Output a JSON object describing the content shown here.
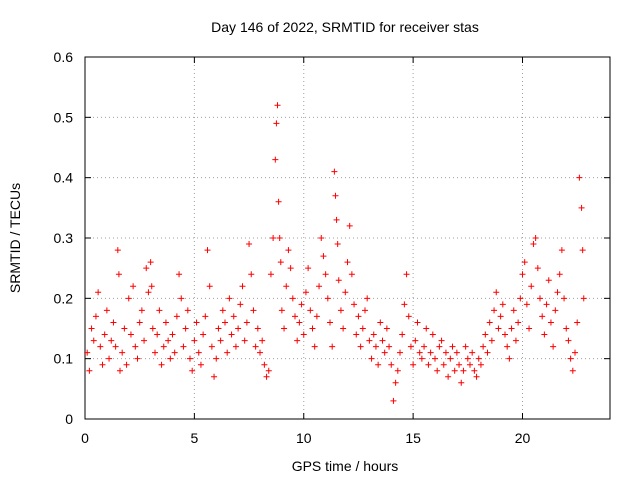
{
  "chart_data": {
    "type": "scatter",
    "title": "Day 146 of 2022, SRMTID for receiver stas",
    "xlabel": "GPS time / hours",
    "ylabel": "SRMTID / TECUs",
    "xlim": [
      0,
      24
    ],
    "ylim": [
      0,
      0.6
    ],
    "xticks": [
      0,
      5,
      10,
      15,
      20
    ],
    "xtick_labels": [
      "0",
      "5",
      "10",
      "15",
      "20"
    ],
    "yticks": [
      0,
      0.1,
      0.2,
      0.3,
      0.4,
      0.5,
      0.6
    ],
    "ytick_labels": [
      "0",
      "0.1",
      "0.2",
      "0.3",
      "0.4",
      "0.5",
      "0.6"
    ],
    "grid": true,
    "marker": "plus",
    "color": "#ff0000",
    "series": [
      {
        "name": "SRMTID",
        "x": [
          0.1,
          0.2,
          0.3,
          0.4,
          0.5,
          0.6,
          0.7,
          0.8,
          0.9,
          1.0,
          1.1,
          1.2,
          1.3,
          1.4,
          1.5,
          1.55,
          1.6,
          1.7,
          1.8,
          1.9,
          2.0,
          2.1,
          2.2,
          2.3,
          2.4,
          2.5,
          2.6,
          2.7,
          2.8,
          2.9,
          3.0,
          3.05,
          3.1,
          3.2,
          3.3,
          3.4,
          3.5,
          3.6,
          3.7,
          3.8,
          3.9,
          4.0,
          4.1,
          4.2,
          4.3,
          4.4,
          4.5,
          4.6,
          4.7,
          4.8,
          4.9,
          5.0,
          5.1,
          5.2,
          5.3,
          5.4,
          5.5,
          5.6,
          5.7,
          5.8,
          5.9,
          6.0,
          6.1,
          6.2,
          6.3,
          6.4,
          6.5,
          6.6,
          6.7,
          6.8,
          6.9,
          7.0,
          7.1,
          7.2,
          7.3,
          7.4,
          7.5,
          7.6,
          7.7,
          7.8,
          7.9,
          8.0,
          8.1,
          8.2,
          8.3,
          8.4,
          8.5,
          8.6,
          8.7,
          8.75,
          8.8,
          8.85,
          8.9,
          8.95,
          9.0,
          9.1,
          9.2,
          9.3,
          9.4,
          9.5,
          9.6,
          9.7,
          9.8,
          9.9,
          10.0,
          10.1,
          10.2,
          10.3,
          10.4,
          10.5,
          10.6,
          10.7,
          10.8,
          10.9,
          11.0,
          11.1,
          11.2,
          11.3,
          11.4,
          11.45,
          11.5,
          11.55,
          11.6,
          11.7,
          11.8,
          11.9,
          12.0,
          12.1,
          12.2,
          12.3,
          12.4,
          12.5,
          12.6,
          12.7,
          12.8,
          12.9,
          13.0,
          13.1,
          13.2,
          13.3,
          13.4,
          13.5,
          13.6,
          13.7,
          13.8,
          13.9,
          14.0,
          14.1,
          14.2,
          14.3,
          14.4,
          14.5,
          14.6,
          14.7,
          14.8,
          14.9,
          15.0,
          15.1,
          15.2,
          15.3,
          15.4,
          15.5,
          15.6,
          15.7,
          15.8,
          15.9,
          16.0,
          16.1,
          16.2,
          16.3,
          16.4,
          16.5,
          16.6,
          16.7,
          16.8,
          16.9,
          17.0,
          17.1,
          17.2,
          17.3,
          17.4,
          17.5,
          17.6,
          17.7,
          17.8,
          17.9,
          18.0,
          18.1,
          18.2,
          18.3,
          18.4,
          18.5,
          18.6,
          18.7,
          18.8,
          18.9,
          19.0,
          19.1,
          19.2,
          19.3,
          19.4,
          19.5,
          19.6,
          19.7,
          19.8,
          19.9,
          20.0,
          20.1,
          20.2,
          20.3,
          20.4,
          20.5,
          20.6,
          20.7,
          20.8,
          20.9,
          21.0,
          21.1,
          21.2,
          21.3,
          21.4,
          21.5,
          21.6,
          21.7,
          21.8,
          21.9,
          22.0,
          22.1,
          22.2,
          22.3,
          22.4,
          22.5,
          22.6,
          22.7,
          22.75,
          22.8
        ],
        "y": [
          0.11,
          0.08,
          0.15,
          0.13,
          0.17,
          0.21,
          0.12,
          0.09,
          0.14,
          0.18,
          0.1,
          0.13,
          0.16,
          0.12,
          0.28,
          0.24,
          0.08,
          0.11,
          0.15,
          0.09,
          0.2,
          0.14,
          0.22,
          0.12,
          0.1,
          0.16,
          0.18,
          0.13,
          0.25,
          0.21,
          0.26,
          0.22,
          0.15,
          0.11,
          0.14,
          0.18,
          0.09,
          0.12,
          0.16,
          0.13,
          0.1,
          0.14,
          0.11,
          0.17,
          0.24,
          0.2,
          0.12,
          0.15,
          0.18,
          0.1,
          0.08,
          0.13,
          0.16,
          0.11,
          0.09,
          0.14,
          0.17,
          0.28,
          0.22,
          0.12,
          0.07,
          0.1,
          0.15,
          0.13,
          0.18,
          0.16,
          0.11,
          0.2,
          0.14,
          0.17,
          0.12,
          0.15,
          0.19,
          0.22,
          0.13,
          0.16,
          0.29,
          0.24,
          0.18,
          0.12,
          0.15,
          0.11,
          0.13,
          0.09,
          0.07,
          0.08,
          0.24,
          0.3,
          0.43,
          0.49,
          0.52,
          0.36,
          0.3,
          0.26,
          0.18,
          0.15,
          0.22,
          0.28,
          0.25,
          0.2,
          0.17,
          0.13,
          0.16,
          0.19,
          0.14,
          0.21,
          0.25,
          0.18,
          0.15,
          0.12,
          0.17,
          0.22,
          0.3,
          0.27,
          0.24,
          0.2,
          0.16,
          0.12,
          0.41,
          0.37,
          0.33,
          0.29,
          0.23,
          0.18,
          0.15,
          0.21,
          0.26,
          0.32,
          0.24,
          0.19,
          0.14,
          0.17,
          0.12,
          0.15,
          0.18,
          0.2,
          0.13,
          0.1,
          0.14,
          0.12,
          0.09,
          0.16,
          0.13,
          0.11,
          0.15,
          0.12,
          0.09,
          0.03,
          0.06,
          0.08,
          0.11,
          0.14,
          0.19,
          0.24,
          0.17,
          0.12,
          0.09,
          0.13,
          0.16,
          0.11,
          0.1,
          0.12,
          0.15,
          0.09,
          0.11,
          0.14,
          0.1,
          0.08,
          0.12,
          0.13,
          0.09,
          0.11,
          0.07,
          0.1,
          0.12,
          0.08,
          0.11,
          0.09,
          0.06,
          0.08,
          0.12,
          0.1,
          0.09,
          0.11,
          0.08,
          0.07,
          0.1,
          0.09,
          0.12,
          0.14,
          0.11,
          0.16,
          0.13,
          0.18,
          0.21,
          0.15,
          0.17,
          0.19,
          0.14,
          0.12,
          0.1,
          0.15,
          0.18,
          0.13,
          0.16,
          0.2,
          0.24,
          0.26,
          0.19,
          0.15,
          0.22,
          0.29,
          0.3,
          0.25,
          0.2,
          0.17,
          0.14,
          0.19,
          0.23,
          0.16,
          0.12,
          0.18,
          0.21,
          0.24,
          0.28,
          0.2,
          0.15,
          0.13,
          0.1,
          0.08,
          0.11,
          0.16,
          0.4,
          0.35,
          0.28,
          0.2
        ]
      }
    ]
  }
}
